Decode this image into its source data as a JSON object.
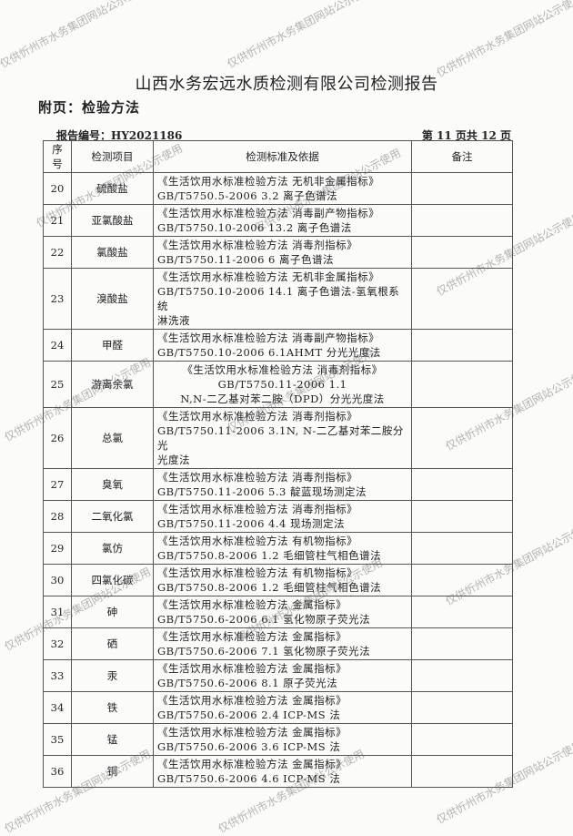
{
  "title": "山西水务宏远水质检测有限公司检测报告",
  "appendix": "附页：检验方法",
  "report_no": "报告编号：HY2021186",
  "page_info": "第 11 页共 12 页",
  "watermark": "仅供忻州市水务集团网站公示使用",
  "table": {
    "headers": [
      "序号",
      "检测项目",
      "检测标准及依据",
      "备注"
    ],
    "rows": [
      {
        "no": "20",
        "item": "硫酸盐",
        "lines": [
          "《生活饮用水标准检验方法 无机非金属指标》",
          "GB/T5750.5-2006  3.2 离子色谱法"
        ],
        "note": ""
      },
      {
        "no": "21",
        "item": "亚氯酸盐",
        "lines": [
          "《生活饮用水标准检验方法 消毒副产物指标》",
          "GB/T5750.10-2006  13.2 离子色谱法"
        ],
        "note": ""
      },
      {
        "no": "22",
        "item": "氯酸盐",
        "lines": [
          "《生活饮用水标准检验方法  消毒剂指标》",
          "GB/T5750.11-2006  6 离子色谱法"
        ],
        "note": ""
      },
      {
        "no": "23",
        "item": "溴酸盐",
        "lines": [
          "《生活饮用水标准检验方法 无机非金属指标》",
          "GB/T5750.10-2006  14.1 离子色谱法-氢氧根系统",
          "淋洗液"
        ],
        "note": ""
      },
      {
        "no": "24",
        "item": "甲醛",
        "lines": [
          "《生活饮用水标准检验方法 消毒副产物指标》",
          "GB/T5750.10-2006  6.1AHMT 分光光度法"
        ],
        "note": ""
      },
      {
        "no": "25",
        "item": "游离余氯",
        "lines": [
          "《生活饮用水标准检验方法 消毒剂指标》",
          "GB/T5750.11-2006 1.1",
          "N,N-二乙基对苯二胺（DPD）分光光度法"
        ],
        "note": "",
        "centered": true
      },
      {
        "no": "26",
        "item": "总氯",
        "lines": [
          "《生活饮用水标准检验方法  消毒剂指标》",
          "GB/T5750.11-2006  3.1N, N-二乙基对苯二胺分光",
          "光度法"
        ],
        "note": ""
      },
      {
        "no": "27",
        "item": "臭氧",
        "lines": [
          "《生活饮用水标准检验方法  消毒剂指标》",
          "GB/T5750.11-2006  5.3 靛蓝现场测定法"
        ],
        "note": ""
      },
      {
        "no": "28",
        "item": "二氧化氯",
        "lines": [
          "《生活饮用水标准检验方法  消毒剂指标》",
          "GB/T5750.11-2006  4.4 现场测定法"
        ],
        "note": ""
      },
      {
        "no": "29",
        "item": "氯仿",
        "lines": [
          "《生活饮用水标准检验方法  有机物指标》",
          "GB/T5750.8-2006  1.2 毛细管柱气相色谱法"
        ],
        "note": ""
      },
      {
        "no": "30",
        "item": "四氯化碳",
        "lines": [
          "《生活饮用水标准检验方法  有机物指标》",
          "GB/T5750.8-2006  1.2 毛细管柱气相色谱法"
        ],
        "note": ""
      },
      {
        "no": "31",
        "item": "砷",
        "lines": [
          "《生活饮用水标准检验方法  金属指标》",
          "GB/T5750.6-2006  6.1 氢化物原子荧光法"
        ],
        "note": ""
      },
      {
        "no": "32",
        "item": "硒",
        "lines": [
          "《生活饮用水标准检验方法  金属指标》",
          "GB/T5750.6-2006  7.1 氢化物原子荧光法"
        ],
        "note": ""
      },
      {
        "no": "33",
        "item": "汞",
        "lines": [
          "《生活饮用水标准检验方法  金属指标》",
          "GB/T5750.6-2006  8.1 原子荧光法"
        ],
        "note": ""
      },
      {
        "no": "34",
        "item": "铁",
        "lines": [
          "《生活饮用水标准检验方法  金属指标》",
          "GB/T5750.6-2006  2.4 ICP-MS 法"
        ],
        "note": ""
      },
      {
        "no": "35",
        "item": "锰",
        "lines": [
          "《生活饮用水标准检验方法  金属指标》",
          "GB/T5750.6-2006  3.6 ICP-MS 法"
        ],
        "note": ""
      },
      {
        "no": "36",
        "item": "铜",
        "lines": [
          "《生活饮用水标准检验方法  金属指标》",
          "GB/T5750.6-2006  4.6 ICP-MS 法"
        ],
        "note": ""
      }
    ]
  }
}
